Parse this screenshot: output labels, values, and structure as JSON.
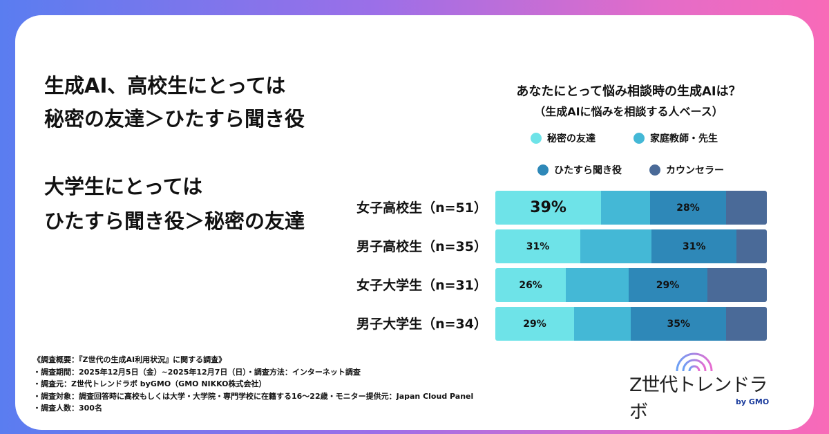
{
  "headline": {
    "line1": "生成AI、高校生にとっては",
    "line2": "秘密の友達＞ひたすら聞き役",
    "line3": "大学生にとっては",
    "line4": "ひたすら聞き役＞秘密の友達"
  },
  "chart_data": {
    "type": "bar",
    "orientation": "horizontal-stacked-100",
    "title": "あなたにとって悩み相談時の生成AIは？",
    "subtitle": "（生成AIに悩みを相談する人ベース）",
    "categories": [
      "女子高校生（n=51）",
      "男子高校生（n=35）",
      "女子大学生（n=31）",
      "男子大学生（n=34）"
    ],
    "series": [
      {
        "name": "秘密の友達",
        "color": "#6ee3e8",
        "values": [
          39,
          31,
          26,
          29
        ],
        "labels": [
          "39%",
          "31%",
          "26%",
          "29%"
        ]
      },
      {
        "name": "家庭教師・先生",
        "color": "#44b8d6",
        "values": [
          18,
          26,
          23,
          21
        ],
        "labels": [
          "",
          "",
          "",
          ""
        ]
      },
      {
        "name": "ひたすら聞き役",
        "color": "#2e88b8",
        "values": [
          28,
          31,
          29,
          35
        ],
        "labels": [
          "28%",
          "31%",
          "29%",
          "35%"
        ]
      },
      {
        "name": "カウンセラー",
        "color": "#4a6a98",
        "values": [
          15,
          11,
          22,
          15
        ],
        "labels": [
          "",
          "",
          "",
          ""
        ]
      }
    ],
    "xlim": [
      0,
      100
    ],
    "legend": "top"
  },
  "notes": [
    "《調査概要：『Z世代の生成AI利用状況』に関する調査》",
    "・調査期間：2025年12月5日（金）~2025年12月7日（日）・調査方法：インターネット調査",
    "・調査元：Z世代トレンドラボ byGMO（GMO NIKKO株式会社）",
    "・調査対象：調査回答時に高校もしくは大学・大学院・専門学校に在籍する16〜22歳・モニター提供元：Japan Cloud Panel",
    "・調査人数：300名"
  ],
  "logo": {
    "name": "Z世代トレンドラボ",
    "by": "by GMO"
  }
}
